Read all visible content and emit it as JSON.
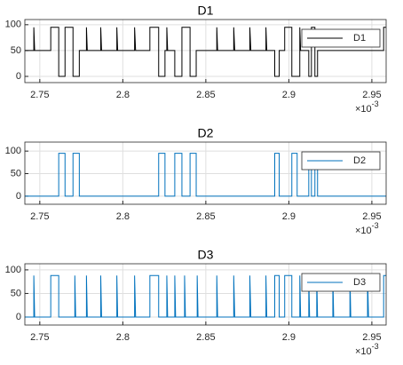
{
  "chart_data": [
    {
      "type": "line",
      "title": "D1",
      "grid": true,
      "legend": "northeast",
      "x_multiplier": "×10",
      "x_exponent": "-3",
      "xlim": [
        2.741,
        2.9586
      ],
      "xticks": [
        2.75,
        2.8,
        2.85,
        2.9,
        2.95
      ],
      "ylim": [
        -12,
        110
      ],
      "yticks": [
        0,
        50,
        100
      ],
      "x": [
        2.741,
        2.7464,
        2.7464,
        2.7469,
        2.7566,
        2.7566,
        2.7614,
        2.7614,
        2.7652,
        2.7652,
        2.77,
        2.77,
        2.7738,
        2.7738,
        2.7781,
        2.7781,
        2.7786,
        2.7867,
        2.7867,
        2.7872,
        2.7964,
        2.7964,
        2.7969,
        2.8071,
        2.8071,
        2.8077,
        2.8163,
        2.8163,
        2.8216,
        2.8216,
        2.8254,
        2.8254,
        2.8265,
        2.8265,
        2.827,
        2.8313,
        2.8313,
        2.8356,
        2.8356,
        2.8405,
        2.8405,
        2.8442,
        2.8442,
        2.8566,
        2.8566,
        2.8571,
        2.8668,
        2.8668,
        2.8674,
        2.8765,
        2.8765,
        2.8771,
        2.8862,
        2.8862,
        2.8867,
        2.8915,
        2.8915,
        2.8942,
        2.8942,
        2.8975,
        2.8975,
        2.9018,
        2.9018,
        2.9066,
        2.9066,
        2.9071,
        2.912,
        2.912,
        2.9136,
        2.9136,
        2.9157,
        2.9157,
        2.9173,
        2.9173,
        2.9571,
        2.9571,
        2.9586
      ],
      "series": [
        {
          "name": "D1",
          "color": "#000000",
          "values": [
            50,
            50,
            95,
            50,
            50,
            95,
            95,
            0,
            0,
            95,
            95,
            0,
            0,
            50,
            50,
            95,
            50,
            50,
            95,
            50,
            50,
            95,
            50,
            50,
            95,
            50,
            50,
            95,
            95,
            0,
            0,
            50,
            50,
            95,
            50,
            50,
            0,
            0,
            95,
            95,
            0,
            0,
            50,
            50,
            95,
            50,
            50,
            95,
            50,
            50,
            95,
            50,
            50,
            95,
            50,
            50,
            0,
            0,
            50,
            50,
            95,
            95,
            0,
            0,
            95,
            50,
            50,
            0,
            0,
            95,
            95,
            0,
            0,
            50,
            50,
            95,
            95
          ]
        }
      ]
    },
    {
      "type": "line",
      "title": "D2",
      "grid": true,
      "legend": "northeast",
      "x_multiplier": "×10",
      "x_exponent": "-3",
      "xlim": [
        2.741,
        2.9586
      ],
      "xticks": [
        2.75,
        2.8,
        2.85,
        2.9,
        2.95
      ],
      "ylim": [
        -18,
        120
      ],
      "yticks": [
        0,
        50,
        100
      ],
      "x": [
        2.741,
        2.7614,
        2.7614,
        2.7652,
        2.7652,
        2.77,
        2.77,
        2.7738,
        2.7738,
        2.8216,
        2.8216,
        2.8254,
        2.8254,
        2.8313,
        2.8313,
        2.8356,
        2.8356,
        2.8405,
        2.8405,
        2.8442,
        2.8442,
        2.8915,
        2.8915,
        2.8942,
        2.8942,
        2.9018,
        2.9018,
        2.905,
        2.905,
        2.912,
        2.912,
        2.9136,
        2.9136,
        2.9157,
        2.9157,
        2.9173,
        2.9173,
        2.9586
      ],
      "series": [
        {
          "name": "D2",
          "color": "#0072bd",
          "values": [
            0,
            0,
            95,
            95,
            0,
            0,
            95,
            95,
            0,
            0,
            95,
            95,
            0,
            0,
            95,
            95,
            0,
            0,
            95,
            95,
            0,
            0,
            95,
            95,
            0,
            0,
            95,
            95,
            0,
            0,
            95,
            95,
            0,
            0,
            95,
            95,
            0,
            0
          ]
        }
      ]
    },
    {
      "type": "line",
      "title": "D3",
      "grid": true,
      "legend": "northeast",
      "x_multiplier": "×10",
      "x_exponent": "-3",
      "xlim": [
        2.741,
        2.9586
      ],
      "xticks": [
        2.75,
        2.8,
        2.85,
        2.9,
        2.95
      ],
      "ylim": [
        -17,
        113
      ],
      "yticks": [
        0,
        50,
        100
      ],
      "x": [
        2.741,
        2.7464,
        2.7464,
        2.7469,
        2.7566,
        2.7566,
        2.7614,
        2.7614,
        2.7711,
        2.7711,
        2.7716,
        2.7781,
        2.7781,
        2.7786,
        2.7867,
        2.7867,
        2.7872,
        2.7964,
        2.7964,
        2.7969,
        2.8071,
        2.8071,
        2.8077,
        2.8163,
        2.8163,
        2.8216,
        2.8216,
        2.8265,
        2.8265,
        2.827,
        2.8313,
        2.8313,
        2.8318,
        2.8372,
        2.8372,
        2.8377,
        2.8448,
        2.8448,
        2.8453,
        2.8566,
        2.8566,
        2.8571,
        2.8668,
        2.8668,
        2.8674,
        2.8765,
        2.8765,
        2.8771,
        2.8862,
        2.8862,
        2.8867,
        2.8915,
        2.8915,
        2.8942,
        2.8942,
        2.8975,
        2.8975,
        2.9018,
        2.9018,
        2.9066,
        2.9066,
        2.9071,
        2.912,
        2.912,
        2.9125,
        2.9168,
        2.9168,
        2.9173,
        2.9265,
        2.9265,
        2.927,
        2.9368,
        2.9368,
        2.9373,
        2.9474,
        2.9474,
        2.948,
        2.9571,
        2.9571,
        2.9586
      ],
      "series": [
        {
          "name": "D3",
          "color": "#0072bd",
          "values": [
            0,
            0,
            88,
            0,
            0,
            88,
            88,
            0,
            0,
            88,
            0,
            0,
            88,
            0,
            0,
            88,
            0,
            0,
            88,
            0,
            0,
            88,
            0,
            0,
            88,
            88,
            0,
            0,
            88,
            0,
            0,
            88,
            0,
            0,
            88,
            0,
            0,
            88,
            0,
            0,
            88,
            0,
            0,
            88,
            0,
            0,
            88,
            0,
            0,
            88,
            0,
            0,
            88,
            88,
            0,
            0,
            88,
            88,
            0,
            0,
            88,
            0,
            0,
            88,
            0,
            0,
            88,
            0,
            0,
            88,
            0,
            0,
            88,
            0,
            0,
            88,
            0,
            0,
            88,
            88
          ]
        }
      ]
    }
  ]
}
